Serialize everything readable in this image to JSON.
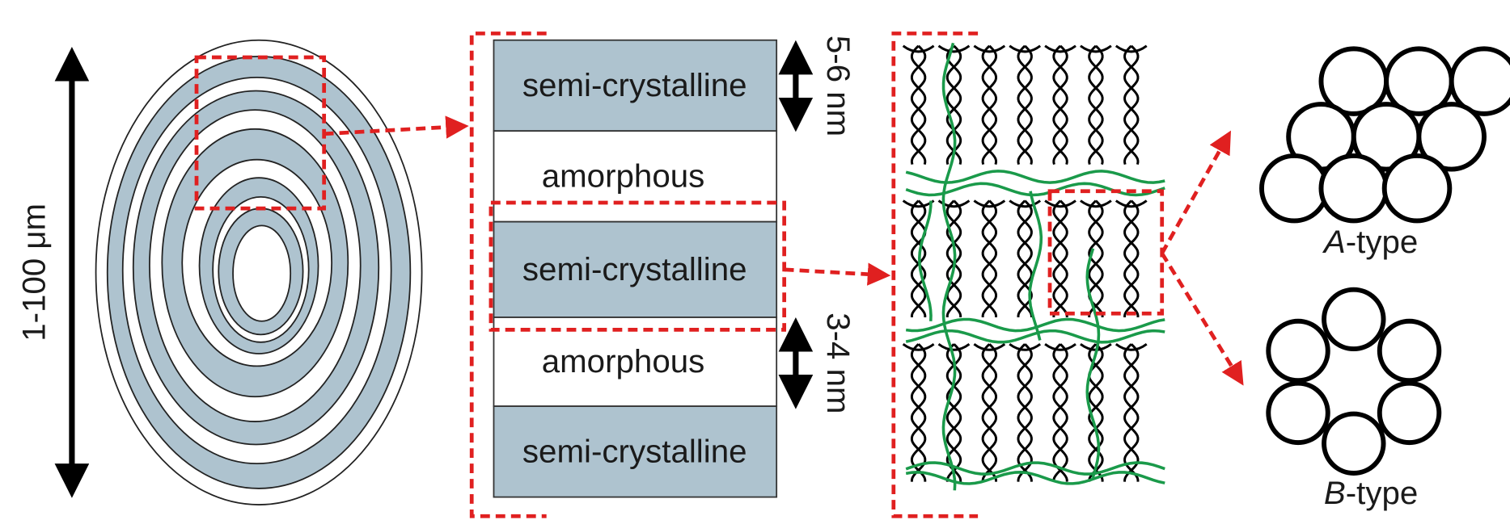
{
  "scale_label": "1-100 μm",
  "layers": [
    "semi-crystalline",
    "amorphous",
    "semi-crystalline",
    "amorphous",
    "semi-crystalline"
  ],
  "dimensions": [
    "5-6 nm",
    "3-4 nm"
  ],
  "packing": [
    {
      "letter": "A",
      "suffix": "-type"
    },
    {
      "letter": "B",
      "suffix": "-type"
    }
  ]
}
